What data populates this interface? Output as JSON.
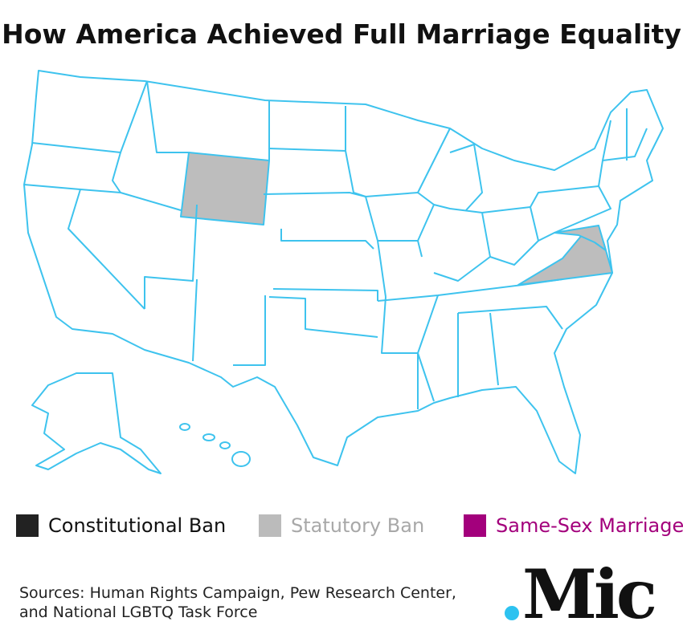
{
  "title": "How America Achieved Full Marriage Equality",
  "legend": [
    {
      "label": "Constitutional Ban",
      "color": "#222222",
      "text_color": "#111111"
    },
    {
      "label": "Statutory Ban",
      "color": "#bbbbbb",
      "text_color": "#a8a8a8"
    },
    {
      "label": "Same-Sex Marriage",
      "color": "#a3007c",
      "text_color": "#a3007c"
    }
  ],
  "sources": [
    "Sources: Human Rights Campaign, Pew Research Center,",
    "and National LGBTQ Task Force"
  ],
  "logo": "Mic"
}
